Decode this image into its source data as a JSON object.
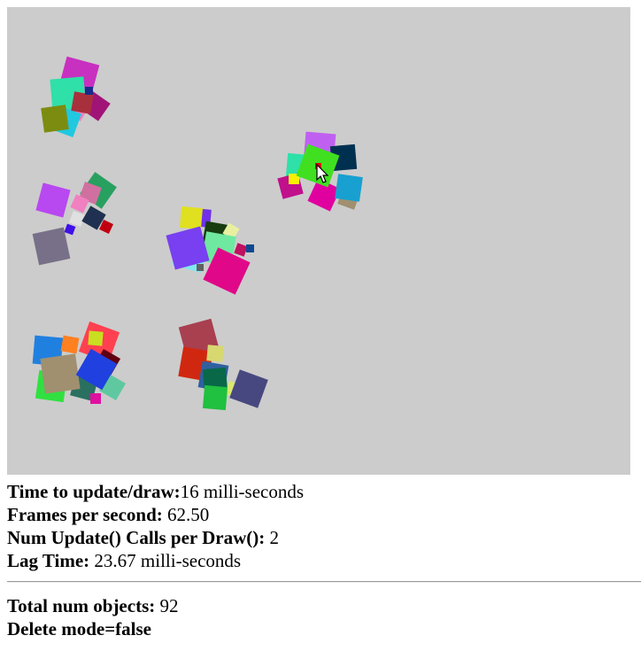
{
  "stats": {
    "time_label": "Time to update/draw:",
    "time_value": "16 milli-seconds",
    "fps_label": "Frames per second:",
    "fps_value": "62.50",
    "updates_label": "Num Update() Calls per Draw():",
    "updates_value": "2",
    "lag_label": "Lag Time:",
    "lag_value": "23.67 milli-seconds"
  },
  "totals": {
    "objects_label": "Total num objects:",
    "objects_value": "92",
    "delete_mode": "Delete mode=false"
  },
  "canvas": {
    "background": "#cccccc",
    "cursor_icon": "arrow-cursor-icon"
  },
  "palette": [
    "#c830c0",
    "#2fe0a8",
    "#7c8c10",
    "#20c8e0",
    "#a8303c",
    "#a01478",
    "#1a2a8c",
    "#40e8a0",
    "#b848f0",
    "#28a060",
    "#f080c0",
    "#203050",
    "#787088",
    "#4010e8",
    "#c00010",
    "#e0e020",
    "#6fe8a0",
    "#7030e8",
    "#e00888",
    "#183c10",
    "#e8f0a0",
    "#104890",
    "#c060f0",
    "#40e020",
    "#e000a0",
    "#18a0d0",
    "#003050",
    "#f8f000",
    "#d02810",
    "#a84050",
    "#d8d870",
    "#086848",
    "#20c040",
    "#484880",
    "#2080e0",
    "#ff8020",
    "#30e040",
    "#a09070",
    "#2040e0",
    "#60c8a0",
    "#600010",
    "#f0e020",
    "#ff4050",
    "#f0a0d0",
    "#80d0f0"
  ]
}
